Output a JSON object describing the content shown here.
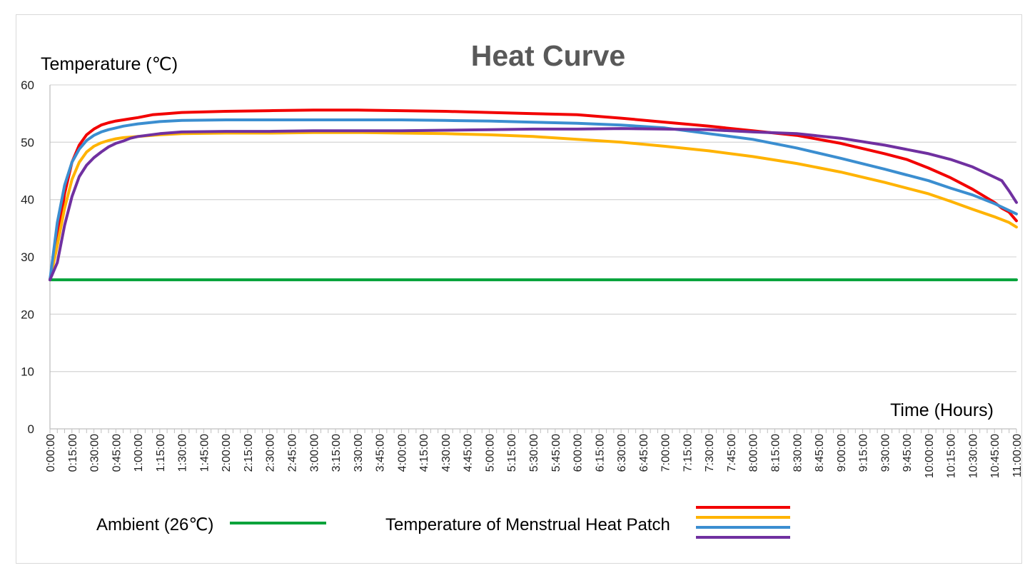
{
  "chart_data": {
    "type": "line",
    "title": "Heat Curve",
    "ylabel": "Temperature (℃)",
    "xlabel": "Time  (Hours)",
    "ylim": [
      0,
      60
    ],
    "yticks": [
      0,
      10,
      20,
      30,
      40,
      50,
      60
    ],
    "xlim_minutes": [
      0,
      660
    ],
    "x_tick_labels": [
      "0:00:00",
      "0:15:00",
      "0:30:00",
      "0:45:00",
      "1:00:00",
      "1:15:00",
      "1:30:00",
      "1:45:00",
      "2:00:00",
      "2:15:00",
      "2:30:00",
      "2:45:00",
      "3:00:00",
      "3:15:00",
      "3:30:00",
      "3:45:00",
      "4:00:00",
      "4:15:00",
      "4:30:00",
      "4:45:00",
      "5:00:00",
      "5:15:00",
      "5:30:00",
      "5:45:00",
      "6:00:00",
      "6:15:00",
      "6:30:00",
      "6:45:00",
      "7:00:00",
      "7:15:00",
      "7:30:00",
      "7:45:00",
      "8:00:00",
      "8:15:00",
      "8:30:00",
      "8:45:00",
      "9:00:00",
      "9:15:00",
      "9:30:00",
      "9:45:00",
      "10:00:00",
      "10:15:00",
      "10:30:00",
      "10:45:00",
      "11:00:00"
    ],
    "grid": true,
    "series": [
      {
        "color": "#00a33a",
        "x": [
          "0:00:00",
          "11:00:00"
        ],
        "values": [
          26,
          26
        ]
      },
      {
        "color": "#f20000",
        "x": [
          "0:00:00",
          "0:05:00",
          "0:10:00",
          "0:15:00",
          "0:20:00",
          "0:25:00",
          "0:30:00",
          "0:35:00",
          "0:40:00",
          "0:45:00",
          "0:50:00",
          "0:55:00",
          "1:00:00",
          "1:10:00",
          "1:20:00",
          "1:30:00",
          "2:00:00",
          "2:30:00",
          "3:00:00",
          "3:30:00",
          "4:00:00",
          "4:30:00",
          "5:00:00",
          "5:30:00",
          "6:00:00",
          "6:30:00",
          "7:00:00",
          "7:30:00",
          "8:00:00",
          "8:30:00",
          "9:00:00",
          "9:30:00",
          "9:45:00",
          "10:00:00",
          "10:15:00",
          "10:30:00",
          "10:45:00",
          "10:50:00",
          "10:55:00",
          "11:00:00"
        ],
        "values": [
          26,
          33,
          41,
          46.5,
          49.5,
          51.3,
          52.3,
          53,
          53.4,
          53.7,
          53.9,
          54.1,
          54.3,
          54.8,
          55,
          55.2,
          55.4,
          55.5,
          55.6,
          55.6,
          55.5,
          55.4,
          55.2,
          55,
          54.8,
          54.2,
          53.5,
          52.8,
          52,
          51.2,
          49.8,
          48,
          47,
          45.5,
          43.8,
          41.8,
          39.5,
          38.5,
          37.8,
          36.3
        ]
      },
      {
        "color": "#ffb300",
        "x": [
          "0:00:00",
          "0:05:00",
          "0:10:00",
          "0:15:00",
          "0:20:00",
          "0:25:00",
          "0:30:00",
          "0:35:00",
          "0:40:00",
          "0:45:00",
          "0:50:00",
          "0:55:00",
          "1:00:00",
          "1:15:00",
          "1:30:00",
          "2:00:00",
          "2:30:00",
          "3:00:00",
          "3:30:00",
          "4:00:00",
          "4:30:00",
          "5:00:00",
          "5:30:00",
          "6:00:00",
          "6:30:00",
          "7:00:00",
          "7:30:00",
          "8:00:00",
          "8:30:00",
          "9:00:00",
          "9:30:00",
          "10:00:00",
          "10:15:00",
          "10:30:00",
          "10:45:00",
          "10:55:00",
          "11:00:00"
        ],
        "values": [
          26,
          32,
          38.5,
          43.5,
          46.5,
          48.3,
          49.3,
          49.9,
          50.3,
          50.6,
          50.8,
          50.9,
          51,
          51.3,
          51.5,
          51.6,
          51.6,
          51.7,
          51.7,
          51.6,
          51.5,
          51.3,
          51,
          50.5,
          50,
          49.3,
          48.5,
          47.5,
          46.3,
          44.8,
          43,
          41,
          39.7,
          38.3,
          37,
          36,
          35.2
        ]
      },
      {
        "color": "#3b8ed0",
        "x": [
          "0:00:00",
          "0:05:00",
          "0:10:00",
          "0:15:00",
          "0:20:00",
          "0:25:00",
          "0:30:00",
          "0:35:00",
          "0:40:00",
          "0:45:00",
          "0:50:00",
          "0:55:00",
          "1:00:00",
          "1:15:00",
          "1:30:00",
          "2:00:00",
          "2:30:00",
          "3:00:00",
          "3:30:00",
          "4:00:00",
          "4:30:00",
          "5:00:00",
          "5:30:00",
          "6:00:00",
          "6:30:00",
          "7:00:00",
          "7:30:00",
          "8:00:00",
          "8:30:00",
          "9:00:00",
          "9:30:00",
          "10:00:00",
          "10:15:00",
          "10:30:00",
          "10:45:00",
          "11:00:00"
        ],
        "values": [
          26,
          36,
          42.5,
          46.5,
          48.8,
          50.3,
          51.2,
          51.8,
          52.2,
          52.5,
          52.8,
          53,
          53.2,
          53.6,
          53.8,
          53.9,
          53.9,
          53.9,
          53.9,
          53.9,
          53.8,
          53.7,
          53.5,
          53.3,
          53,
          52.5,
          51.5,
          50.5,
          49,
          47.2,
          45.3,
          43.3,
          42,
          40.8,
          39.3,
          37.5
        ]
      },
      {
        "color": "#7030a0",
        "x": [
          "0:00:00",
          "0:05:00",
          "0:10:00",
          "0:15:00",
          "0:20:00",
          "0:25:00",
          "0:30:00",
          "0:35:00",
          "0:40:00",
          "0:45:00",
          "0:50:00",
          "0:55:00",
          "1:00:00",
          "1:15:00",
          "1:30:00",
          "2:00:00",
          "2:30:00",
          "3:00:00",
          "3:30:00",
          "4:00:00",
          "4:30:00",
          "5:00:00",
          "5:30:00",
          "6:00:00",
          "6:30:00",
          "7:00:00",
          "7:30:00",
          "8:00:00",
          "8:30:00",
          "9:00:00",
          "9:30:00",
          "10:00:00",
          "10:15:00",
          "10:30:00",
          "10:40:00",
          "10:50:00",
          "10:55:00",
          "11:00:00"
        ],
        "values": [
          26,
          29,
          35.5,
          40.5,
          44,
          46,
          47.3,
          48.3,
          49.2,
          49.8,
          50.2,
          50.7,
          51,
          51.5,
          51.8,
          51.9,
          51.9,
          52,
          52,
          52,
          52.1,
          52.2,
          52.3,
          52.3,
          52.4,
          52.3,
          52.2,
          51.8,
          51.5,
          50.7,
          49.5,
          48,
          47,
          45.7,
          44.5,
          43.3,
          41.5,
          39.5
        ]
      }
    ]
  },
  "legend": {
    "ambient_label": "Ambient (26℃)",
    "ambient_color": "#00a33a",
    "patch_label": "Temperature of Menstrual Heat Patch",
    "patch_colors": [
      "#f20000",
      "#ffb300",
      "#3b8ed0",
      "#7030a0"
    ]
  }
}
